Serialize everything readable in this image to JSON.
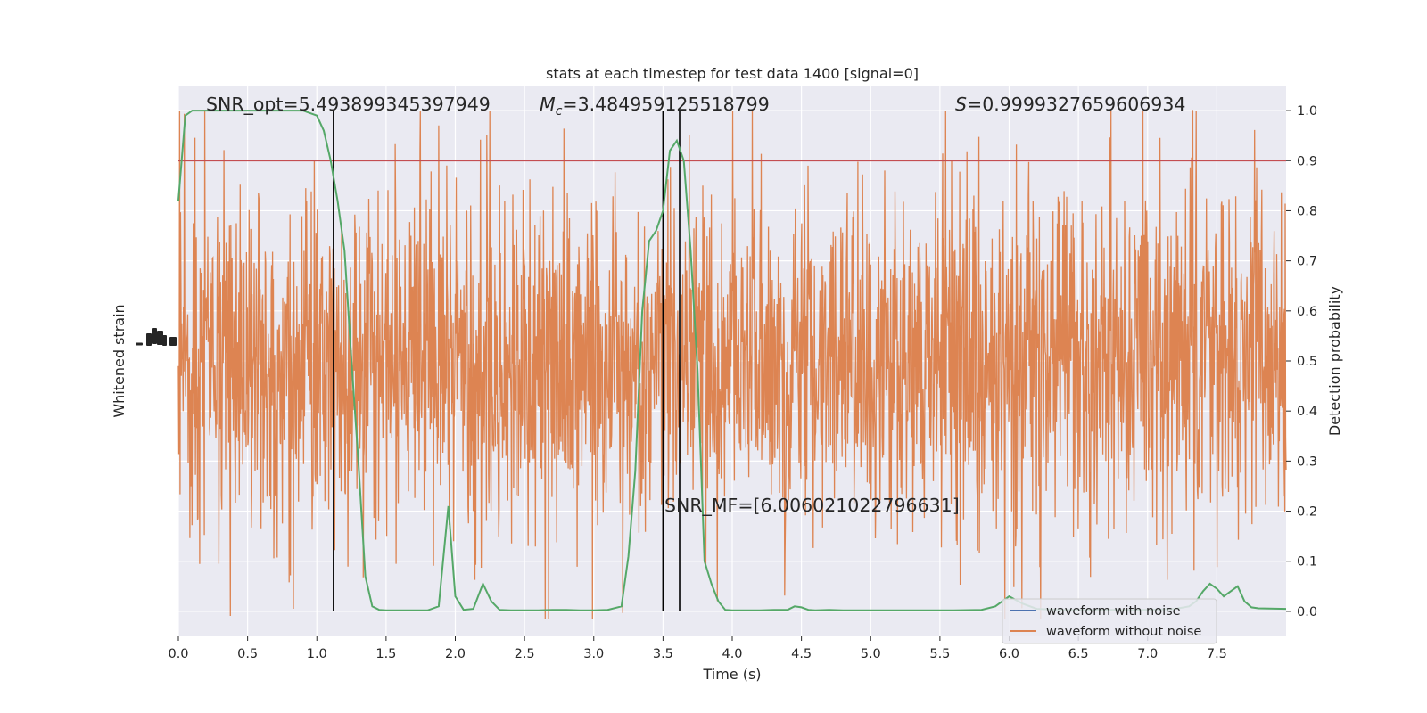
{
  "chart_data": {
    "type": "line",
    "title": "stats at each timestep for test data 1400 [signal=0]",
    "xlabel": "Time (s)",
    "ylabel_left": "Whitened strain",
    "ylabel_right": "Detection probability",
    "xlim": [
      0,
      8
    ],
    "ylim_right": [
      -0.05,
      1.05
    ],
    "x_ticks": [
      "0.0",
      "0.5",
      "1.0",
      "1.5",
      "2.0",
      "2.5",
      "3.0",
      "3.5",
      "4.0",
      "4.5",
      "5.0",
      "5.5",
      "6.0",
      "6.5",
      "7.0",
      "7.5"
    ],
    "y_ticks_right": [
      "0.0",
      "0.1",
      "0.2",
      "0.3",
      "0.4",
      "0.5",
      "0.6",
      "0.7",
      "0.8",
      "0.9",
      "1.0"
    ],
    "threshold": 0.9,
    "vlines": [
      1.12,
      3.5,
      3.62
    ],
    "annotations": {
      "snr_opt": "SNR_opt=5.493899345397949",
      "mc_symbol": "M",
      "mc_sub": "c",
      "mc_value": "=3.484959125518799",
      "s_symbol": "S",
      "s_value": "=0.9999327659606934",
      "snr_mf": "SNR_MF=[6.006021022796631]"
    },
    "legend": [
      "waveform with noise",
      "waveform without noise"
    ],
    "legend_position": "lower-right",
    "colors": {
      "noise": "#4c72b0",
      "strain": "#dd8452",
      "probability": "#55a868",
      "threshold": "#c44e52",
      "vline": "#000000",
      "background": "#eaeaf2",
      "grid": "#ffffff"
    },
    "series": [
      {
        "name": "detection probability",
        "x": [
          0.0,
          0.05,
          0.1,
          0.15,
          0.2,
          0.3,
          0.4,
          0.5,
          0.6,
          0.7,
          0.8,
          0.9,
          1.0,
          1.05,
          1.1,
          1.15,
          1.2,
          1.25,
          1.3,
          1.35,
          1.4,
          1.45,
          1.5,
          1.6,
          1.7,
          1.8,
          1.88,
          1.95,
          2.0,
          2.06,
          2.13,
          2.2,
          2.26,
          2.32,
          2.4,
          2.5,
          2.6,
          2.7,
          2.8,
          2.9,
          3.0,
          3.1,
          3.2,
          3.25,
          3.3,
          3.35,
          3.4,
          3.45,
          3.5,
          3.55,
          3.6,
          3.65,
          3.7,
          3.75,
          3.8,
          3.85,
          3.9,
          3.95,
          4.0,
          4.1,
          4.2,
          4.3,
          4.4,
          4.45,
          4.5,
          4.55,
          4.6,
          4.7,
          4.8,
          5.0,
          5.2,
          5.4,
          5.6,
          5.8,
          5.9,
          6.0,
          6.1,
          6.2,
          6.4,
          6.6,
          6.8,
          7.0,
          7.2,
          7.3,
          7.35,
          7.4,
          7.45,
          7.5,
          7.55,
          7.6,
          7.65,
          7.7,
          7.75,
          7.8,
          8.0
        ],
        "values": [
          0.82,
          0.99,
          1.0,
          1.0,
          1.0,
          1.0,
          1.0,
          1.0,
          1.0,
          1.0,
          1.0,
          1.0,
          0.99,
          0.96,
          0.9,
          0.82,
          0.72,
          0.5,
          0.3,
          0.07,
          0.01,
          0.003,
          0.002,
          0.002,
          0.002,
          0.002,
          0.01,
          0.21,
          0.03,
          0.003,
          0.005,
          0.055,
          0.02,
          0.003,
          0.002,
          0.002,
          0.002,
          0.003,
          0.003,
          0.002,
          0.002,
          0.003,
          0.01,
          0.11,
          0.28,
          0.6,
          0.74,
          0.76,
          0.8,
          0.92,
          0.94,
          0.9,
          0.72,
          0.48,
          0.1,
          0.055,
          0.02,
          0.003,
          0.002,
          0.002,
          0.002,
          0.003,
          0.003,
          0.01,
          0.008,
          0.003,
          0.002,
          0.003,
          0.002,
          0.002,
          0.002,
          0.002,
          0.002,
          0.003,
          0.01,
          0.03,
          0.015,
          0.005,
          0.003,
          0.003,
          0.003,
          0.003,
          0.005,
          0.01,
          0.02,
          0.04,
          0.055,
          0.045,
          0.03,
          0.04,
          0.05,
          0.02,
          0.008,
          0.006,
          0.005
        ]
      }
    ]
  }
}
